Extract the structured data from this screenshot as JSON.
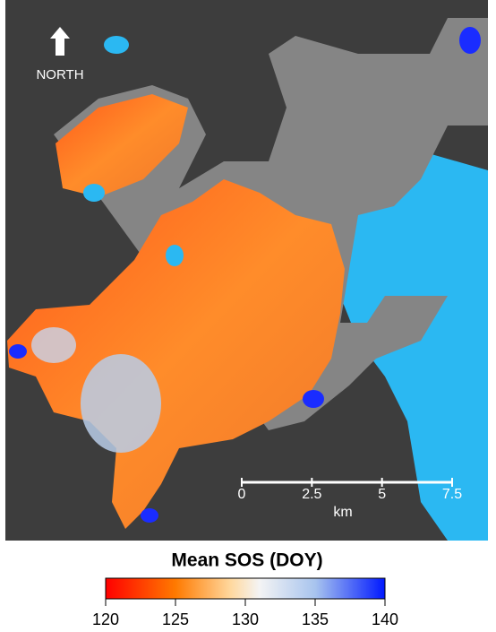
{
  "north_label": "NORTH",
  "scale_bar": {
    "ticks": [
      0,
      2.5,
      5,
      7.5
    ],
    "unit": "km"
  },
  "legend": {
    "title": "Mean SOS (DOY)",
    "range": [
      120,
      140
    ],
    "ticks": [
      120,
      125,
      130,
      135,
      140
    ]
  }
}
